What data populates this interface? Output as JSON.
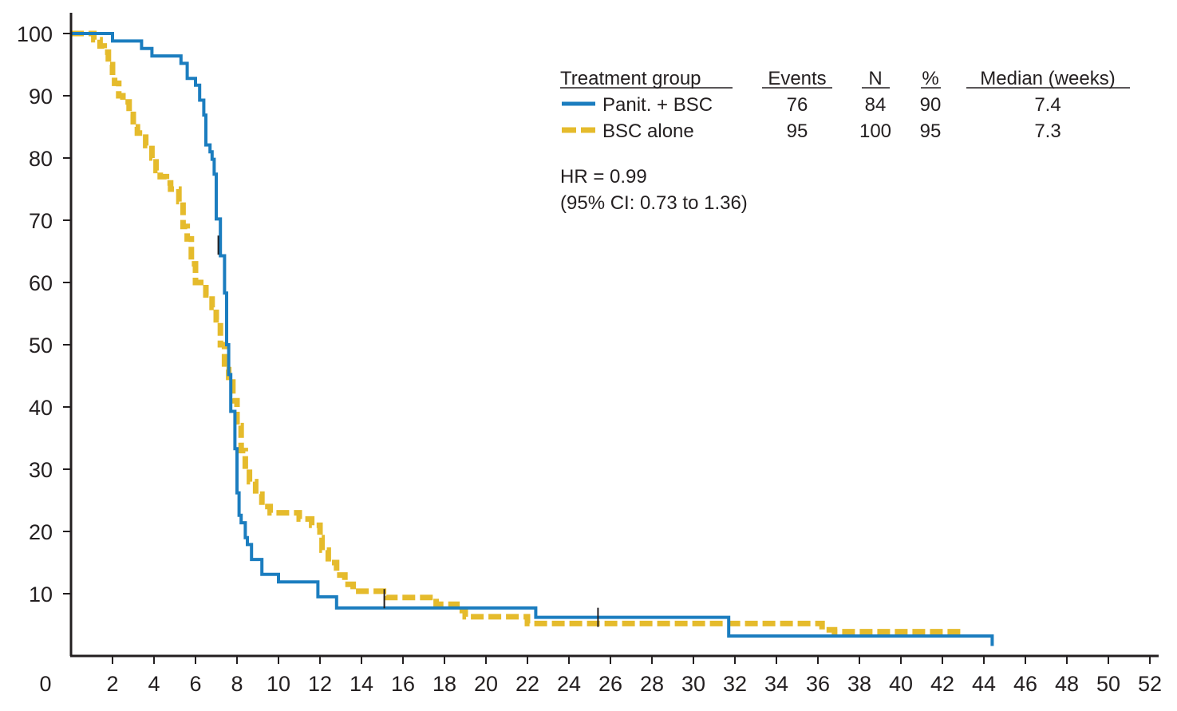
{
  "chart_data": {
    "type": "line",
    "title": "",
    "xlabel": "",
    "ylabel": "",
    "xlim": [
      0,
      52
    ],
    "ylim": [
      0,
      100
    ],
    "grid": false,
    "x_ticks": [
      "0",
      "2",
      "4",
      "6",
      "8",
      "10",
      "12",
      "14",
      "16",
      "18",
      "20",
      "22",
      "24",
      "26",
      "28",
      "30",
      "32",
      "34",
      "36",
      "38",
      "40",
      "42",
      "44",
      "46",
      "48",
      "50",
      "52"
    ],
    "y_ticks": [
      "10",
      "20",
      "30",
      "40",
      "50",
      "60",
      "70",
      "80",
      "90",
      "100"
    ],
    "colors": {
      "panit": "#1b7dbf",
      "bsc": "#e5bb2c",
      "axis": "#231f20"
    },
    "legend": {
      "placement": "top-right",
      "headers": {
        "group": "Treatment group",
        "events": "Events",
        "n": "N",
        "pct": "%",
        "median": "Median (weeks)"
      },
      "rows": [
        {
          "label": "Panit. + BSC",
          "events": "76",
          "n": "84",
          "pct": "90",
          "median": "7.4"
        },
        {
          "label": "BSC alone",
          "events": "95",
          "n": "100",
          "pct": "95",
          "median": "7.3"
        }
      ]
    },
    "annotations": {
      "hr": "HR = 0.99",
      "ci": "(95% CI: 0.73 to 1.36)"
    },
    "series": [
      {
        "name": "Panit. + BSC",
        "style": "solid",
        "points": [
          [
            0,
            100
          ],
          [
            2,
            100
          ],
          [
            2,
            98.8
          ],
          [
            3.4,
            98.8
          ],
          [
            3.4,
            97.6
          ],
          [
            3.9,
            97.6
          ],
          [
            3.9,
            96.4
          ],
          [
            5.3,
            96.4
          ],
          [
            5.3,
            95.2
          ],
          [
            5.6,
            95.2
          ],
          [
            5.6,
            92.8
          ],
          [
            6.0,
            92.8
          ],
          [
            6.0,
            91.7
          ],
          [
            6.2,
            91.7
          ],
          [
            6.2,
            89.3
          ],
          [
            6.4,
            89.3
          ],
          [
            6.4,
            86.9
          ],
          [
            6.5,
            86.9
          ],
          [
            6.5,
            82.1
          ],
          [
            6.7,
            82.1
          ],
          [
            6.7,
            81.0
          ],
          [
            6.8,
            81.0
          ],
          [
            6.8,
            79.8
          ],
          [
            6.9,
            79.8
          ],
          [
            6.9,
            77.4
          ],
          [
            7.0,
            77.4
          ],
          [
            7.0,
            70.2
          ],
          [
            7.2,
            70.2
          ],
          [
            7.2,
            64.3
          ],
          [
            7.4,
            64.3
          ],
          [
            7.4,
            58.3
          ],
          [
            7.5,
            58.3
          ],
          [
            7.5,
            50.0
          ],
          [
            7.6,
            50.0
          ],
          [
            7.6,
            45.2
          ],
          [
            7.7,
            45.2
          ],
          [
            7.7,
            39.3
          ],
          [
            7.9,
            39.3
          ],
          [
            7.9,
            33.3
          ],
          [
            8.0,
            33.3
          ],
          [
            8.0,
            26.2
          ],
          [
            8.1,
            26.2
          ],
          [
            8.1,
            22.6
          ],
          [
            8.2,
            22.6
          ],
          [
            8.2,
            21.4
          ],
          [
            8.4,
            21.4
          ],
          [
            8.4,
            19.0
          ],
          [
            8.5,
            19.0
          ],
          [
            8.5,
            17.9
          ],
          [
            8.7,
            17.9
          ],
          [
            8.7,
            15.5
          ],
          [
            9.2,
            15.5
          ],
          [
            9.2,
            13.1
          ],
          [
            10.0,
            13.1
          ],
          [
            10.0,
            11.9
          ],
          [
            11.9,
            11.9
          ],
          [
            11.9,
            9.5
          ],
          [
            12.8,
            9.5
          ],
          [
            12.8,
            7.7
          ],
          [
            22.4,
            7.7
          ],
          [
            22.4,
            6.2
          ],
          [
            31.7,
            6.2
          ],
          [
            31.7,
            3.2
          ],
          [
            44.4,
            3.2
          ],
          [
            44.4,
            1.6
          ]
        ],
        "censored": [
          [
            7.1,
            66.0
          ],
          [
            25.4,
            6.2
          ]
        ]
      },
      {
        "name": "BSC alone",
        "style": "dashed",
        "points": [
          [
            0,
            100
          ],
          [
            1.1,
            100
          ],
          [
            1.1,
            99.0
          ],
          [
            1.4,
            99.0
          ],
          [
            1.4,
            98.0
          ],
          [
            1.6,
            98.0
          ],
          [
            1.6,
            97.0
          ],
          [
            1.8,
            97.0
          ],
          [
            1.8,
            95.0
          ],
          [
            2.0,
            95.0
          ],
          [
            2.0,
            93.0
          ],
          [
            2.1,
            93.0
          ],
          [
            2.1,
            92.0
          ],
          [
            2.3,
            92.0
          ],
          [
            2.3,
            90.0
          ],
          [
            2.5,
            90.0
          ],
          [
            2.5,
            89.0
          ],
          [
            2.8,
            89.0
          ],
          [
            2.8,
            87.0
          ],
          [
            3.0,
            87.0
          ],
          [
            3.0,
            85.0
          ],
          [
            3.2,
            85.0
          ],
          [
            3.2,
            84.0
          ],
          [
            3.6,
            84.0
          ],
          [
            3.6,
            82.0
          ],
          [
            3.9,
            82.0
          ],
          [
            3.9,
            80.0
          ],
          [
            4.1,
            80.0
          ],
          [
            4.1,
            78.0
          ],
          [
            4.3,
            78.0
          ],
          [
            4.3,
            77.0
          ],
          [
            4.6,
            77.0
          ],
          [
            4.6,
            76.0
          ],
          [
            4.8,
            76.0
          ],
          [
            4.8,
            75.0
          ],
          [
            5.2,
            75.0
          ],
          [
            5.2,
            73.0
          ],
          [
            5.4,
            73.0
          ],
          [
            5.4,
            69.0
          ],
          [
            5.6,
            69.0
          ],
          [
            5.6,
            67.0
          ],
          [
            5.8,
            67.0
          ],
          [
            5.8,
            63.0
          ],
          [
            6.0,
            63.0
          ],
          [
            6.0,
            60.0
          ],
          [
            6.5,
            60.0
          ],
          [
            6.5,
            58.0
          ],
          [
            6.8,
            58.0
          ],
          [
            6.8,
            56.0
          ],
          [
            7.0,
            56.0
          ],
          [
            7.0,
            54.0
          ],
          [
            7.2,
            54.0
          ],
          [
            7.2,
            50.0
          ],
          [
            7.4,
            50.0
          ],
          [
            7.4,
            46.0
          ],
          [
            7.6,
            46.0
          ],
          [
            7.6,
            44.0
          ],
          [
            7.8,
            44.0
          ],
          [
            7.8,
            41.0
          ],
          [
            8.0,
            41.0
          ],
          [
            8.0,
            37.0
          ],
          [
            8.2,
            37.0
          ],
          [
            8.2,
            33.0
          ],
          [
            8.4,
            33.0
          ],
          [
            8.4,
            30.0
          ],
          [
            8.6,
            30.0
          ],
          [
            8.6,
            28.0
          ],
          [
            8.9,
            28.0
          ],
          [
            8.9,
            26.0
          ],
          [
            9.2,
            26.0
          ],
          [
            9.2,
            24.0
          ],
          [
            9.6,
            24.0
          ],
          [
            9.6,
            23.0
          ],
          [
            11.0,
            23.0
          ],
          [
            11.0,
            22.0
          ],
          [
            11.6,
            22.0
          ],
          [
            11.6,
            21.0
          ],
          [
            12.0,
            21.0
          ],
          [
            12.0,
            19.0
          ],
          [
            12.1,
            19.0
          ],
          [
            12.1,
            17.0
          ],
          [
            12.4,
            17.0
          ],
          [
            12.4,
            15.0
          ],
          [
            12.8,
            15.0
          ],
          [
            12.8,
            13.0
          ],
          [
            13.2,
            13.0
          ],
          [
            13.2,
            11.5
          ],
          [
            13.6,
            11.5
          ],
          [
            13.6,
            10.4
          ],
          [
            15.2,
            10.4
          ],
          [
            15.2,
            9.4
          ],
          [
            17.6,
            9.4
          ],
          [
            17.6,
            8.3
          ],
          [
            18.6,
            8.3
          ],
          [
            18.6,
            7.3
          ],
          [
            19.0,
            7.3
          ],
          [
            19.0,
            6.3
          ],
          [
            22.0,
            6.3
          ],
          [
            22.0,
            5.2
          ],
          [
            36.2,
            5.2
          ],
          [
            36.2,
            4.2
          ],
          [
            36.8,
            4.2
          ],
          [
            36.8,
            3.9
          ],
          [
            43.0,
            3.9
          ]
        ],
        "censored": [
          [
            15.1,
            9.2
          ]
        ]
      }
    ]
  }
}
